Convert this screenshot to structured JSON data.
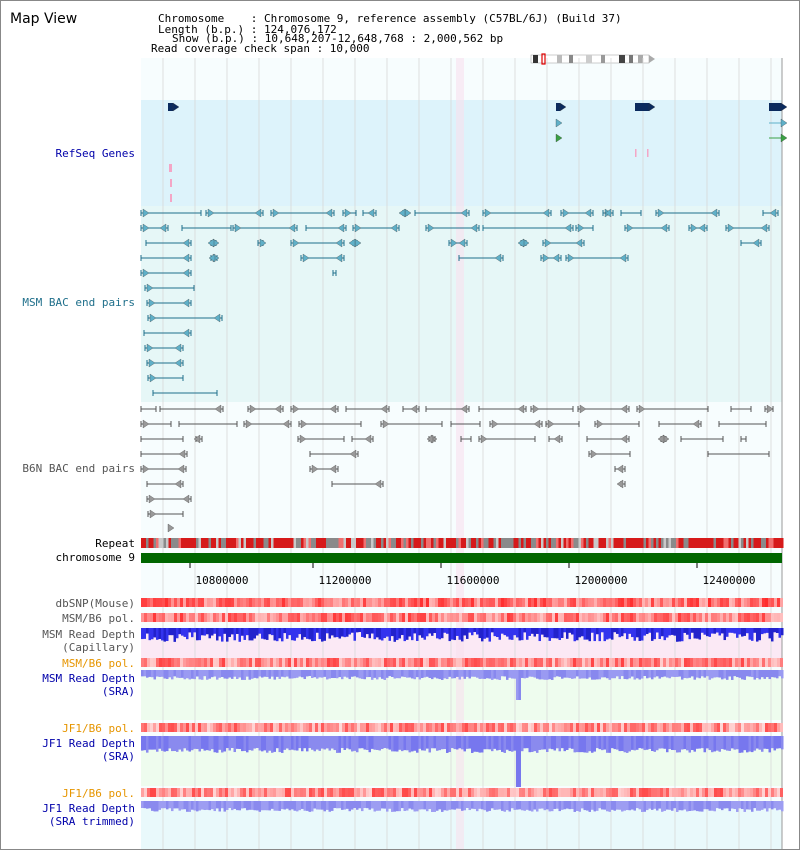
{
  "view_title": "Map View",
  "header": {
    "chromosome_line": "Chromosome    : Chromosome 9, reference assembly (C57BL/6J) (Build 37)",
    "length_line": "Length (b.p.) : 124,076,172",
    "show_line": "Show (b.p.) : 10,648,207-12,648,768 : 2,000,562 bp",
    "coverage_line": "Read coverage check span : 10,000"
  },
  "tracks": {
    "refseq": {
      "label": "RefSeq Genes",
      "color": "#0000aa",
      "bg": "#ddf3fb"
    },
    "msm_bac": {
      "label": "MSM BAC end pairs",
      "color": "#1f6f8b",
      "bg": "#e6f7f7"
    },
    "b6n_bac": {
      "label": "B6N BAC end pairs",
      "color": "#555555"
    },
    "repeat": {
      "label": "Repeat"
    },
    "chromosome": {
      "label": "chromosome 9",
      "color": "#006600"
    },
    "dbsnp": {
      "label": "dbSNP(Mouse)"
    },
    "msm_b6_pol_1": {
      "label": "MSM/B6 pol."
    },
    "msm_depth_cap": {
      "label_1": "MSM Read Depth",
      "label_2": "(Capillary)",
      "bg": "#fbe9f5"
    },
    "msm_b6_pol_2": {
      "label": "MSM/B6 pol.",
      "color": "#e69500"
    },
    "msm_depth_sra": {
      "label_1": "MSM Read Depth",
      "label_2": "(SRA)",
      "color": "#0000aa",
      "bg": "#eefcee"
    },
    "jf1_b6_pol_1": {
      "label": "JF1/B6 pol.",
      "color": "#e69500"
    },
    "jf1_depth_sra": {
      "label_1": "JF1 Read Depth",
      "label_2": "(SRA)",
      "color": "#0000aa"
    },
    "jf1_b6_pol_2": {
      "label": "JF1/B6 pol.",
      "color": "#e69500"
    },
    "jf1_depth_trim": {
      "label_1": "JF1 Read Depth",
      "label_2": "(SRA trimmed)",
      "color": "#0000aa",
      "bg": "#e9f9fb"
    }
  },
  "axis": {
    "ticks": [
      "10800000",
      "11200000",
      "11600000",
      "12000000",
      "12400000"
    ]
  }
}
